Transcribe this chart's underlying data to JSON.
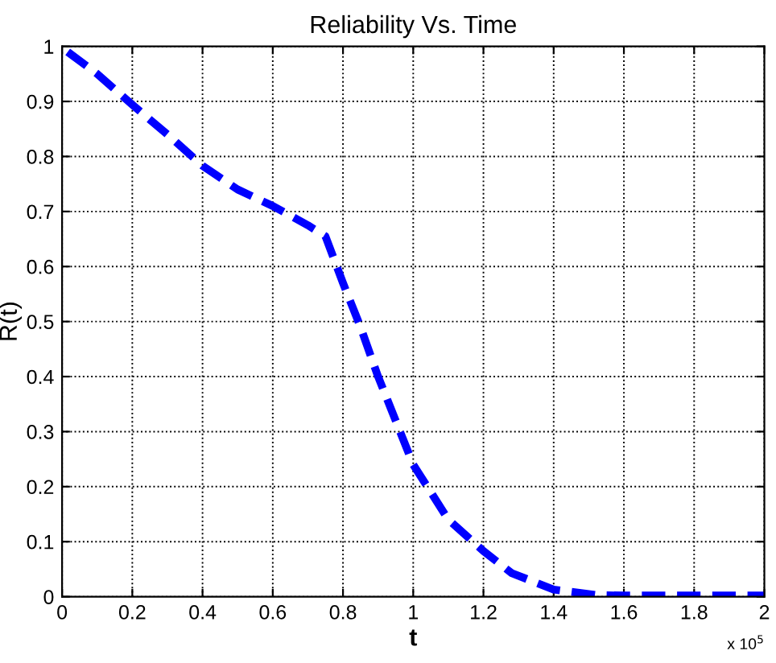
{
  "chart_data": {
    "type": "line",
    "title": "Reliability Vs. Time",
    "xlabel": "t",
    "ylabel": "R(t)",
    "annotations": [
      "x 10$^{5}$"
    ],
    "x": [
      0.016,
      0.1,
      0.2,
      0.3,
      0.4,
      0.5,
      0.6,
      0.7,
      0.75,
      0.8,
      0.85,
      0.9,
      0.95,
      1.0,
      1.05,
      1.1,
      1.2,
      1.28,
      1.4,
      1.52,
      1.6,
      1.8,
      2.0
    ],
    "series": [
      {
        "color": "#0000ff",
        "values": [
          0.99,
          0.95,
          0.894,
          0.84,
          0.783,
          0.74,
          0.71,
          0.675,
          0.655,
          0.57,
          0.49,
          0.4,
          0.32,
          0.24,
          0.19,
          0.14,
          0.083,
          0.043,
          0.013,
          0.003,
          0.002,
          0.002,
          0.002
        ]
      }
    ],
    "xlim": [
      0,
      2
    ],
    "ylim": [
      0,
      1
    ],
    "xticks": [
      0,
      0.2,
      0.4,
      0.6,
      0.8,
      1,
      1.2,
      1.4,
      1.6,
      1.8,
      2
    ],
    "yticks": [
      0,
      0.1,
      0.2,
      0.3,
      0.4,
      0.5,
      0.6,
      0.7,
      0.8,
      0.9,
      1
    ],
    "grid": true,
    "line_style": "dashed",
    "marker": "none"
  }
}
